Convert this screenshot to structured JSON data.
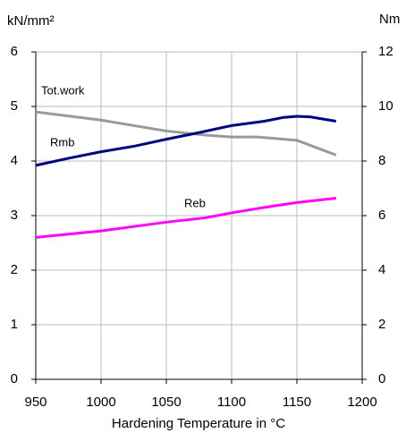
{
  "chart_data": {
    "type": "line",
    "y_label": "kN/mm²",
    "y2_label": "Nm",
    "x_label": "Hardening Temperature in °C",
    "xlim": [
      950,
      1200
    ],
    "xticks": [
      950,
      1000,
      1050,
      1100,
      1150,
      1200
    ],
    "ylim": [
      0,
      6
    ],
    "yticks": [
      0,
      1,
      2,
      3,
      4,
      5,
      6
    ],
    "y2lim": [
      0,
      12
    ],
    "y2ticks": [
      0,
      2,
      4,
      6,
      8,
      10,
      12
    ],
    "grid": true,
    "series": [
      {
        "name": "Tot.work",
        "color": "#999999",
        "axis": "y2",
        "x": [
          950,
          1000,
          1050,
          1080,
          1100,
          1120,
          1150,
          1180
        ],
        "values": [
          9.8,
          9.5,
          9.1,
          8.95,
          8.88,
          8.88,
          8.76,
          8.22
        ]
      },
      {
        "name": "Rmb",
        "color": "#000080",
        "x": [
          950,
          975,
          1000,
          1025,
          1050,
          1075,
          1100,
          1125,
          1140,
          1150,
          1160,
          1180
        ],
        "values": [
          3.92,
          4.05,
          4.17,
          4.27,
          4.4,
          4.52,
          4.65,
          4.73,
          4.8,
          4.82,
          4.81,
          4.73
        ]
      },
      {
        "name": "Reb",
        "color": "#ff00ff",
        "x": [
          950,
          1000,
          1050,
          1080,
          1100,
          1125,
          1150,
          1180
        ],
        "values": [
          2.6,
          2.72,
          2.88,
          2.96,
          3.05,
          3.15,
          3.24,
          3.32
        ]
      }
    ]
  }
}
